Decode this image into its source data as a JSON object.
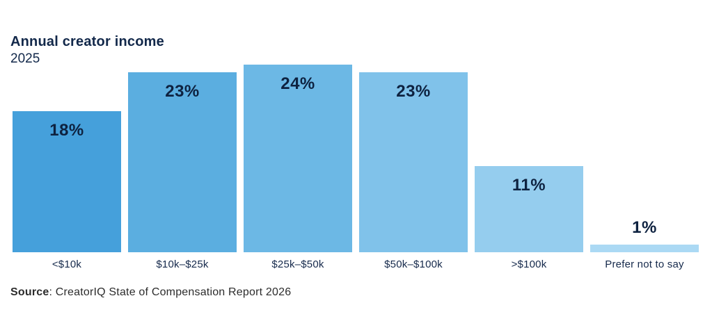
{
  "header": {
    "title": "Annual creator income",
    "subtitle": "2025"
  },
  "source": {
    "label": "Source",
    "text": ": CreatorIQ State of Compensation Report 2026"
  },
  "chart_data": {
    "type": "bar",
    "title": "Annual creator income",
    "subtitle": "2025",
    "categories": [
      "<$10k",
      "$10k–$25k",
      "$25k–$50k",
      "$50k–$100k",
      ">$100k",
      "Prefer not to say"
    ],
    "values": [
      18,
      23,
      24,
      23,
      11,
      1
    ],
    "value_labels": [
      "18%",
      "23%",
      "24%",
      "23%",
      "11%",
      "1%"
    ],
    "unit": "%",
    "ylim": [
      0,
      24
    ],
    "xlabel": "",
    "ylabel": "",
    "grid": false,
    "legend": false,
    "bar_colors": [
      "#45a0db",
      "#5baee0",
      "#6cb8e5",
      "#80c2ea",
      "#95cdee",
      "#abd9f4"
    ],
    "value_label_color": "#0e2240",
    "category_label_color": "#15294b",
    "background_color": "#ffffff"
  }
}
